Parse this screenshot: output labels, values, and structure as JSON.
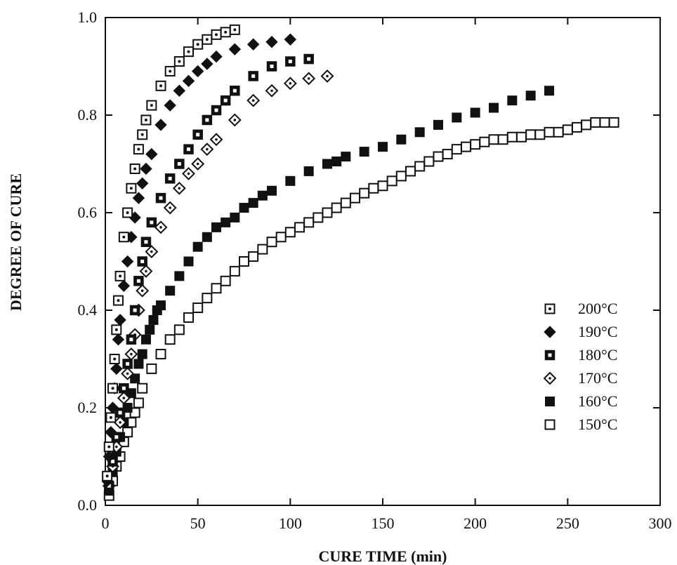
{
  "chart_data": {
    "type": "scatter",
    "xlabel": "CURE TIME (min)",
    "ylabel": "DEGREE OF CURE",
    "xlim": [
      0,
      300
    ],
    "ylim": [
      0,
      1.0
    ],
    "xticks": [
      0,
      50,
      100,
      150,
      200,
      250,
      300
    ],
    "yticks": [
      0.0,
      0.2,
      0.4,
      0.6,
      0.8,
      1.0
    ],
    "ytick_labels": [
      "0.0",
      "0.2",
      "0.4",
      "0.6",
      "0.8",
      "1.0"
    ],
    "grid": false,
    "legend_position": "bottom-right",
    "series": [
      {
        "name": "200°C",
        "marker": "dotted-square",
        "x": [
          1,
          2,
          3,
          4,
          5,
          6,
          7,
          8,
          10,
          12,
          14,
          16,
          18,
          20,
          22,
          25,
          30,
          35,
          40,
          45,
          50,
          55,
          60,
          65,
          70
        ],
        "y": [
          0.06,
          0.12,
          0.18,
          0.24,
          0.3,
          0.36,
          0.42,
          0.47,
          0.55,
          0.6,
          0.65,
          0.69,
          0.73,
          0.76,
          0.79,
          0.82,
          0.86,
          0.89,
          0.91,
          0.93,
          0.945,
          0.955,
          0.965,
          0.97,
          0.975
        ]
      },
      {
        "name": "190°C",
        "marker": "filled-diamond",
        "x": [
          1,
          2,
          3,
          4,
          5,
          6,
          7,
          8,
          10,
          12,
          14,
          16,
          18,
          20,
          22,
          25,
          30,
          35,
          40,
          45,
          50,
          55,
          60,
          70,
          80,
          90,
          100
        ],
        "y": [
          0.05,
          0.1,
          0.15,
          0.2,
          0.24,
          0.28,
          0.34,
          0.38,
          0.45,
          0.5,
          0.55,
          0.59,
          0.63,
          0.66,
          0.69,
          0.72,
          0.78,
          0.82,
          0.85,
          0.87,
          0.89,
          0.905,
          0.92,
          0.935,
          0.945,
          0.95,
          0.955
        ]
      },
      {
        "name": "180°C",
        "marker": "half-filled-square",
        "x": [
          2,
          4,
          6,
          8,
          10,
          12,
          14,
          16,
          18,
          20,
          22,
          25,
          30,
          35,
          40,
          45,
          50,
          55,
          60,
          65,
          70,
          80,
          90,
          100,
          110
        ],
        "y": [
          0.04,
          0.09,
          0.14,
          0.19,
          0.24,
          0.29,
          0.34,
          0.4,
          0.46,
          0.5,
          0.54,
          0.58,
          0.63,
          0.67,
          0.7,
          0.73,
          0.76,
          0.79,
          0.81,
          0.83,
          0.85,
          0.88,
          0.9,
          0.91,
          0.915
        ]
      },
      {
        "name": "170°C",
        "marker": "dotted-diamond",
        "x": [
          2,
          4,
          6,
          8,
          10,
          12,
          14,
          16,
          18,
          20,
          22,
          25,
          30,
          35,
          40,
          45,
          50,
          55,
          60,
          70,
          80,
          90,
          100,
          110,
          120
        ],
        "y": [
          0.04,
          0.08,
          0.12,
          0.17,
          0.22,
          0.27,
          0.31,
          0.35,
          0.4,
          0.44,
          0.48,
          0.52,
          0.57,
          0.61,
          0.65,
          0.68,
          0.7,
          0.73,
          0.75,
          0.79,
          0.83,
          0.85,
          0.865,
          0.875,
          0.88
        ]
      },
      {
        "name": "160°C",
        "marker": "filled-square",
        "x": [
          2,
          4,
          6,
          8,
          10,
          12,
          14,
          16,
          18,
          20,
          22,
          24,
          26,
          28,
          30,
          35,
          40,
          45,
          50,
          55,
          60,
          65,
          70,
          75,
          80,
          85,
          90,
          100,
          110,
          120,
          125,
          130,
          140,
          150,
          160,
          170,
          180,
          190,
          200,
          210,
          220,
          230,
          240
        ],
        "y": [
          0.03,
          0.07,
          0.11,
          0.14,
          0.17,
          0.2,
          0.23,
          0.26,
          0.29,
          0.31,
          0.34,
          0.36,
          0.38,
          0.4,
          0.41,
          0.44,
          0.47,
          0.5,
          0.53,
          0.55,
          0.57,
          0.58,
          0.59,
          0.61,
          0.62,
          0.635,
          0.645,
          0.665,
          0.685,
          0.7,
          0.705,
          0.715,
          0.725,
          0.735,
          0.75,
          0.765,
          0.78,
          0.795,
          0.805,
          0.815,
          0.83,
          0.84,
          0.85
        ]
      },
      {
        "name": "150°C",
        "marker": "open-square",
        "x": [
          2,
          4,
          6,
          8,
          10,
          12,
          14,
          16,
          18,
          20,
          25,
          30,
          35,
          40,
          45,
          50,
          55,
          60,
          65,
          70,
          75,
          80,
          85,
          90,
          95,
          100,
          105,
          110,
          115,
          120,
          125,
          130,
          135,
          140,
          145,
          150,
          155,
          160,
          165,
          170,
          175,
          180,
          185,
          190,
          195,
          200,
          205,
          210,
          215,
          220,
          225,
          230,
          235,
          240,
          245,
          250,
          255,
          260,
          265,
          270,
          275
        ],
        "y": [
          0.02,
          0.05,
          0.08,
          0.1,
          0.13,
          0.15,
          0.17,
          0.19,
          0.21,
          0.24,
          0.28,
          0.31,
          0.34,
          0.36,
          0.385,
          0.405,
          0.425,
          0.445,
          0.46,
          0.48,
          0.5,
          0.51,
          0.525,
          0.54,
          0.55,
          0.56,
          0.57,
          0.58,
          0.59,
          0.6,
          0.61,
          0.62,
          0.63,
          0.64,
          0.65,
          0.655,
          0.665,
          0.675,
          0.685,
          0.695,
          0.705,
          0.715,
          0.72,
          0.73,
          0.735,
          0.74,
          0.745,
          0.75,
          0.75,
          0.755,
          0.755,
          0.76,
          0.76,
          0.765,
          0.765,
          0.77,
          0.775,
          0.78,
          0.785,
          0.785,
          0.785
        ]
      }
    ]
  }
}
